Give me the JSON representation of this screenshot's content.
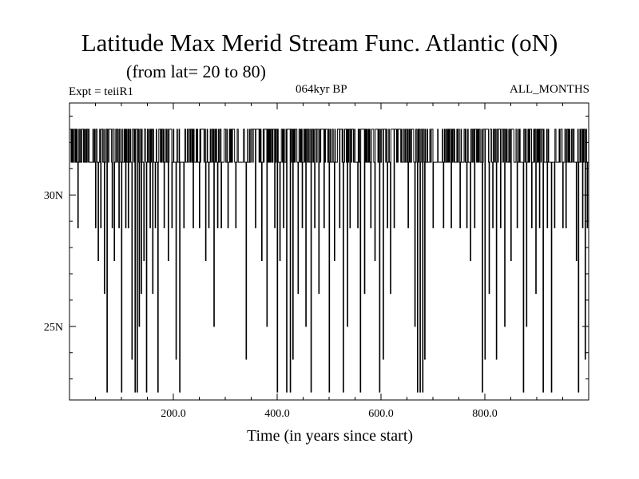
{
  "header": {
    "title": "Latitude Max Merid Stream Func. Atlantic (oN)",
    "subtitle": "(from lat= 20 to 80)",
    "expt": "Expt = teiiR1",
    "period": "064kyr BP",
    "months": "ALL_MONTHS"
  },
  "colors": {
    "line": "#000000",
    "background": "#ffffff"
  },
  "chart_data": {
    "type": "line",
    "title": "Latitude Max Merid Stream Func. Atlantic (oN)",
    "subtitle": "(from lat= 20 to 80)",
    "xlabel": "Time (in years since start)",
    "ylabel": "",
    "xlim": [
      0,
      1000
    ],
    "ylim": [
      22.2,
      33.5
    ],
    "xticks": [
      {
        "value": 200,
        "label": "200.0"
      },
      {
        "value": 400,
        "label": "400.0"
      },
      {
        "value": 600,
        "label": "600.0"
      },
      {
        "value": 800,
        "label": "800.0"
      }
    ],
    "yticks": [
      {
        "value": 25,
        "label": "25N"
      },
      {
        "value": 30,
        "label": "30N"
      }
    ],
    "grid": false,
    "series": [
      {
        "levels": [
          32.5,
          31.25,
          28.75,
          27.5,
          26.25,
          25.0,
          23.75,
          22.5
        ],
        "dips": [
          [
            16,
            28.75
          ],
          [
            50,
            28.75
          ],
          [
            55,
            27.5
          ],
          [
            60,
            28.75
          ],
          [
            64,
            31.25
          ],
          [
            67,
            26.25
          ],
          [
            72,
            22.5
          ],
          [
            82,
            28.75
          ],
          [
            86,
            27.5
          ],
          [
            95,
            28.75
          ],
          [
            100,
            22.5
          ],
          [
            108,
            28.75
          ],
          [
            113,
            28.75
          ],
          [
            120,
            23.75
          ],
          [
            126,
            22.5
          ],
          [
            130,
            22.5
          ],
          [
            134,
            25.0
          ],
          [
            138,
            26.25
          ],
          [
            143,
            27.5
          ],
          [
            148,
            22.5
          ],
          [
            155,
            28.75
          ],
          [
            160,
            26.25
          ],
          [
            165,
            28.75
          ],
          [
            170,
            22.5
          ],
          [
            182,
            28.75
          ],
          [
            190,
            27.5
          ],
          [
            197,
            28.75
          ],
          [
            205,
            23.75
          ],
          [
            212,
            22.5
          ],
          [
            220,
            28.75
          ],
          [
            238,
            28.75
          ],
          [
            250,
            28.75
          ],
          [
            262,
            27.5
          ],
          [
            268,
            28.75
          ],
          [
            278,
            25.0
          ],
          [
            285,
            28.75
          ],
          [
            292,
            28.75
          ],
          [
            305,
            28.75
          ],
          [
            320,
            28.75
          ],
          [
            340,
            23.75
          ],
          [
            358,
            28.75
          ],
          [
            370,
            27.5
          ],
          [
            380,
            25.0
          ],
          [
            395,
            28.75
          ],
          [
            400,
            22.5
          ],
          [
            405,
            27.5
          ],
          [
            412,
            28.75
          ],
          [
            418,
            22.5
          ],
          [
            425,
            22.5
          ],
          [
            430,
            23.75
          ],
          [
            440,
            26.25
          ],
          [
            448,
            28.75
          ],
          [
            455,
            25.0
          ],
          [
            465,
            22.5
          ],
          [
            472,
            28.75
          ],
          [
            480,
            26.25
          ],
          [
            490,
            28.75
          ],
          [
            500,
            22.5
          ],
          [
            510,
            27.5
          ],
          [
            520,
            28.75
          ],
          [
            527,
            22.5
          ],
          [
            535,
            25.0
          ],
          [
            540,
            28.75
          ],
          [
            555,
            28.75
          ],
          [
            560,
            22.5
          ],
          [
            568,
            26.25
          ],
          [
            580,
            28.75
          ],
          [
            588,
            27.5
          ],
          [
            597,
            22.5
          ],
          [
            604,
            23.75
          ],
          [
            612,
            28.75
          ],
          [
            618,
            26.25
          ],
          [
            625,
            28.75
          ],
          [
            652,
            28.75
          ],
          [
            665,
            25.0
          ],
          [
            670,
            22.5
          ],
          [
            675,
            22.5
          ],
          [
            680,
            22.5
          ],
          [
            684,
            23.75
          ],
          [
            700,
            28.75
          ],
          [
            720,
            28.75
          ],
          [
            735,
            28.75
          ],
          [
            752,
            28.75
          ],
          [
            765,
            28.75
          ],
          [
            772,
            27.5
          ],
          [
            780,
            28.75
          ],
          [
            795,
            22.5
          ],
          [
            800,
            23.75
          ],
          [
            808,
            26.25
          ],
          [
            815,
            28.75
          ],
          [
            822,
            23.75
          ],
          [
            830,
            28.75
          ],
          [
            838,
            25.0
          ],
          [
            850,
            27.5
          ],
          [
            862,
            28.75
          ],
          [
            874,
            22.5
          ],
          [
            880,
            25.0
          ],
          [
            890,
            28.75
          ],
          [
            898,
            26.25
          ],
          [
            905,
            28.75
          ],
          [
            912,
            22.5
          ],
          [
            920,
            28.75
          ],
          [
            928,
            22.5
          ],
          [
            934,
            28.75
          ],
          [
            950,
            28.75
          ],
          [
            956,
            28.75
          ],
          [
            976,
            27.5
          ],
          [
            980,
            22.5
          ],
          [
            988,
            28.75
          ],
          [
            993,
            23.75
          ],
          [
            997,
            28.75
          ]
        ]
      }
    ]
  }
}
